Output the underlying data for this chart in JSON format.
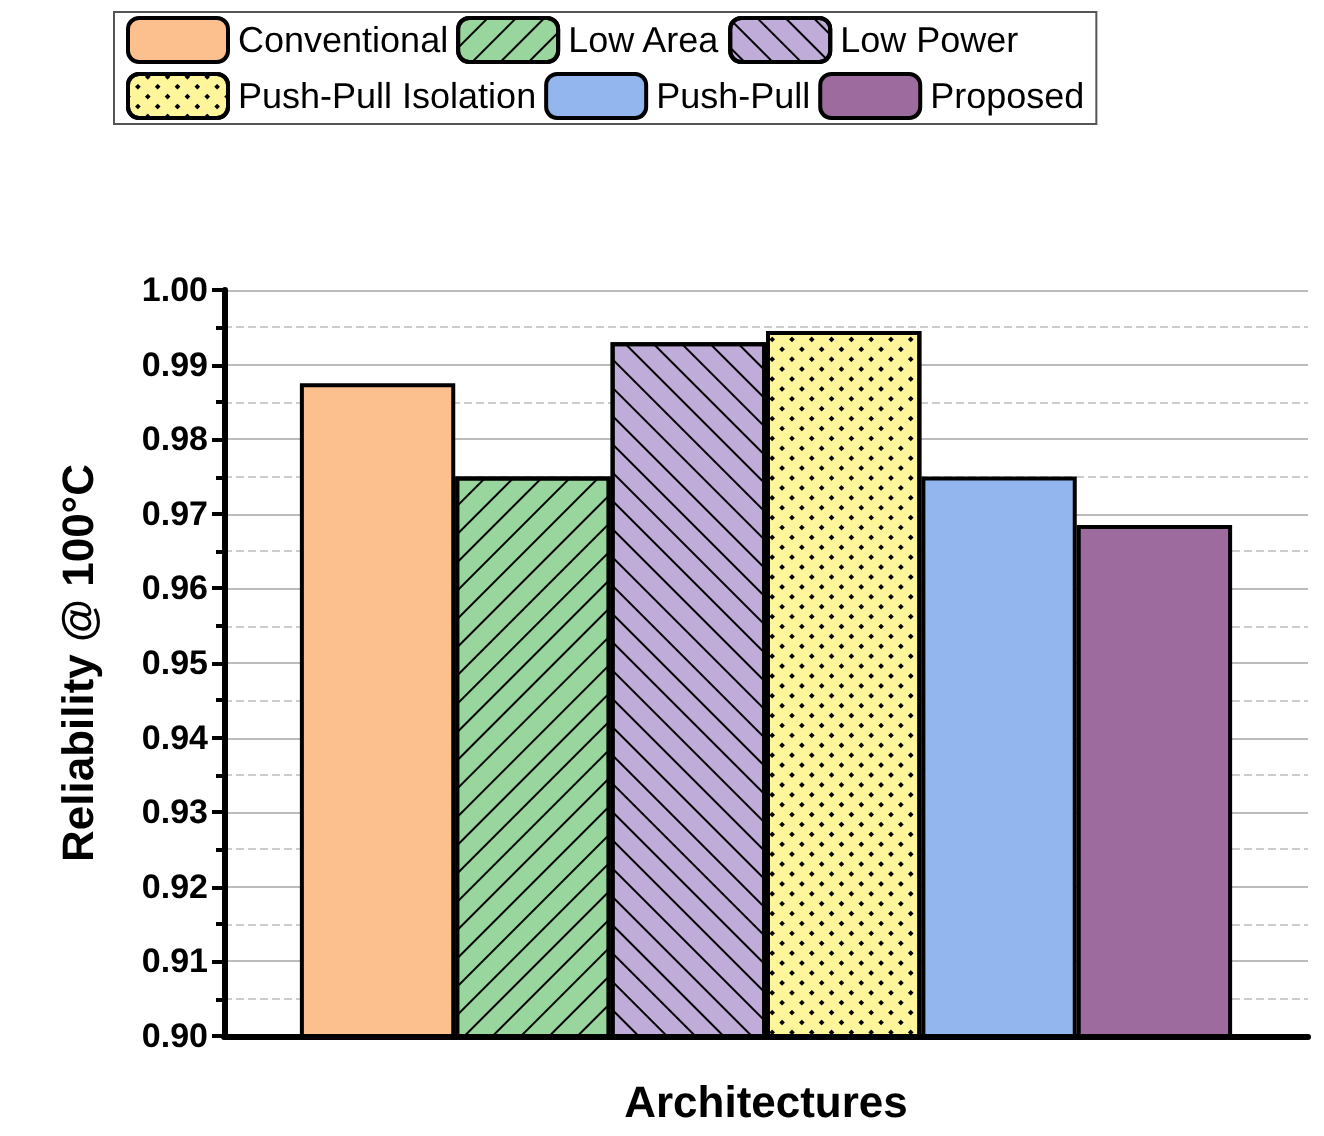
{
  "chart_data": {
    "type": "bar",
    "xlabel": "Architectures",
    "ylabel": "Reliability @ 100°C",
    "categories": [
      null
    ],
    "series": [
      {
        "name": "Conventional",
        "color": "#fcc08f",
        "values": [
          0.9875
        ]
      },
      {
        "name": "Low Area",
        "color": "#98d69d",
        "values": [
          0.975
        ]
      },
      {
        "name": "Low Power",
        "color": "#c0acd8",
        "values": [
          0.993
        ]
      },
      {
        "name": "Push-Pull Isolation",
        "color": "#fff59a",
        "values": [
          0.9945
        ]
      },
      {
        "name": "Push-Pull",
        "color": "#94b6ee",
        "values": [
          0.975
        ]
      },
      {
        "name": "Proposed",
        "color": "#9e6b9e",
        "values": [
          0.9685
        ]
      }
    ],
    "ylim": [
      0.9,
      1.0
    ],
    "yticks": [
      {
        "value": 0.9,
        "label": "0.90"
      },
      0.91,
      0.92,
      0.93,
      0.94,
      0.95,
      0.96,
      0.97,
      0.98,
      0.99,
      {
        "value": 1.0,
        "label": "1.00"
      }
    ],
    "grid": "y",
    "legend": "top"
  }
}
